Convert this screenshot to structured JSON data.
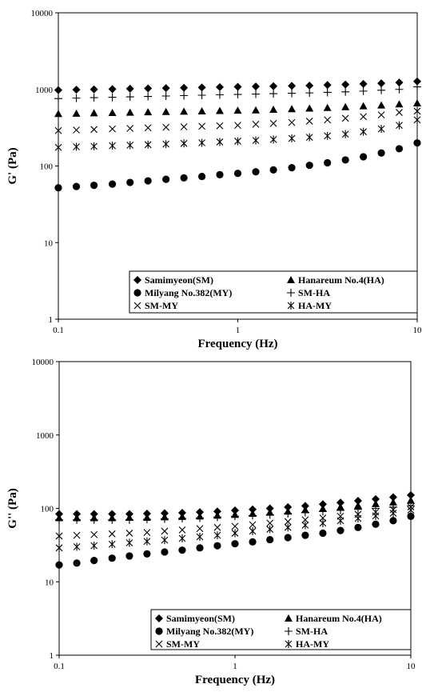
{
  "chart_data": [
    {
      "type": "scatter",
      "xlabel": "Frequency (Hz)",
      "ylabel": "G' (Pa)",
      "x_scale": "log",
      "y_scale": "log",
      "xlim": [
        0.1,
        10
      ],
      "ylim": [
        1,
        10000
      ],
      "x_ticks": [
        "0.1",
        "1",
        "10"
      ],
      "y_ticks": [
        "1",
        "10",
        "100",
        "1000",
        "10000"
      ],
      "grid": false,
      "legend_position": "bottom-right",
      "x": [
        0.1,
        0.126,
        0.158,
        0.2,
        0.251,
        0.316,
        0.398,
        0.501,
        0.631,
        0.794,
        1.0,
        1.26,
        1.58,
        2.0,
        2.51,
        3.16,
        3.98,
        5.01,
        6.31,
        7.94,
        10.0
      ],
      "series": [
        {
          "name": "Samimyeon(SM)",
          "marker": "diamond",
          "values": [
            980,
            990,
            1000,
            1010,
            1020,
            1030,
            1040,
            1050,
            1060,
            1070,
            1080,
            1090,
            1100,
            1110,
            1120,
            1140,
            1160,
            1180,
            1200,
            1230,
            1270
          ]
        },
        {
          "name": "Hanareum No.4(HA)",
          "marker": "triangle",
          "values": [
            480,
            485,
            490,
            495,
            500,
            505,
            510,
            515,
            520,
            525,
            530,
            535,
            545,
            555,
            565,
            575,
            590,
            605,
            620,
            640,
            660
          ]
        },
        {
          "name": "Milyang No.382(MY)",
          "marker": "circle",
          "values": [
            52,
            54,
            56,
            58,
            61,
            64,
            67,
            70,
            73,
            77,
            80,
            84,
            89,
            95,
            102,
            110,
            120,
            132,
            148,
            168,
            200
          ]
        },
        {
          "name": "SM-HA",
          "marker": "plus",
          "values": [
            760,
            770,
            780,
            790,
            800,
            810,
            820,
            830,
            840,
            850,
            860,
            870,
            880,
            890,
            900,
            915,
            930,
            950,
            975,
            1000,
            1080
          ]
        },
        {
          "name": "SM-MY",
          "marker": "x",
          "values": [
            290,
            295,
            300,
            305,
            310,
            315,
            320,
            325,
            330,
            335,
            340,
            350,
            360,
            370,
            385,
            400,
            420,
            440,
            465,
            500,
            520
          ]
        },
        {
          "name": "HA-MY",
          "marker": "asterisk",
          "values": [
            175,
            178,
            181,
            184,
            187,
            190,
            193,
            197,
            201,
            206,
            211,
            216,
            222,
            229,
            237,
            247,
            260,
            280,
            305,
            340,
            400
          ]
        }
      ]
    },
    {
      "type": "scatter",
      "xlabel": "Frequency (Hz)",
      "ylabel": "G'' (Pa)",
      "x_scale": "log",
      "y_scale": "log",
      "xlim": [
        0.1,
        10
      ],
      "ylim": [
        1,
        10000
      ],
      "x_ticks": [
        "0.1",
        "1",
        "10"
      ],
      "y_ticks": [
        "1",
        "10",
        "100",
        "1000",
        "10000"
      ],
      "grid": false,
      "legend_position": "bottom-right",
      "x": [
        0.1,
        0.126,
        0.158,
        0.2,
        0.251,
        0.316,
        0.398,
        0.501,
        0.631,
        0.794,
        1.0,
        1.26,
        1.58,
        2.0,
        2.51,
        3.16,
        3.98,
        5.01,
        6.31,
        7.94,
        10.0
      ],
      "series": [
        {
          "name": "Samimyeon(SM)",
          "marker": "diamond",
          "values": [
            84,
            84,
            84,
            84,
            84,
            85,
            86,
            87,
            89,
            91,
            94,
            97,
            100,
            104,
            108,
            114,
            120,
            127,
            134,
            142,
            152
          ]
        },
        {
          "name": "Hanareum No.4(HA)",
          "marker": "triangle",
          "values": [
            74,
            74,
            74,
            74,
            75,
            75,
            76,
            77,
            78,
            80,
            82,
            85,
            88,
            91,
            95,
            99,
            104,
            109,
            115,
            121,
            128
          ]
        },
        {
          "name": "Milyang No.382(MY)",
          "marker": "circle",
          "values": [
            17,
            18,
            19.5,
            21,
            22.5,
            24,
            25.5,
            27,
            29,
            31,
            33,
            35,
            37.5,
            40,
            43,
            46,
            50,
            55,
            61,
            68,
            78
          ]
        },
        {
          "name": "SM-HA",
          "marker": "plus",
          "values": [
            70,
            70,
            70,
            70,
            70,
            71,
            72,
            73,
            74,
            76,
            78,
            80,
            82,
            85,
            88,
            91,
            94,
            97,
            100,
            104,
            108
          ]
        },
        {
          "name": "SM-MY",
          "marker": "x",
          "values": [
            42,
            43,
            44,
            45,
            46,
            47,
            49,
            51,
            53,
            55,
            57,
            60,
            63,
            66,
            70,
            74,
            78,
            83,
            89,
            96,
            105
          ]
        },
        {
          "name": "HA-MY",
          "marker": "asterisk",
          "values": [
            29,
            30,
            31,
            32.5,
            34,
            35.5,
            37,
            39,
            41,
            43,
            46,
            49,
            52,
            55,
            59,
            63,
            68,
            73,
            79,
            86,
            95
          ]
        }
      ]
    }
  ]
}
